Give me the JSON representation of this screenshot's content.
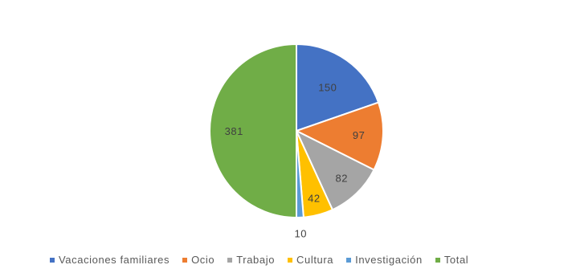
{
  "chart_data": {
    "type": "pie",
    "categories": [
      "Vacaciones familiares",
      "Ocio",
      "Trabajo",
      "Cultura",
      "Investigación",
      "Total"
    ],
    "values": [
      150,
      97,
      82,
      42,
      10,
      381
    ],
    "data_labels": [
      "150",
      "97",
      "82",
      "42",
      "10",
      "381"
    ],
    "colors": [
      "#4472C4",
      "#ED7D31",
      "#A5A5A5",
      "#FFC000",
      "#5B9BD5",
      "#70AD47"
    ],
    "title": "",
    "legend_position": "bottom"
  }
}
